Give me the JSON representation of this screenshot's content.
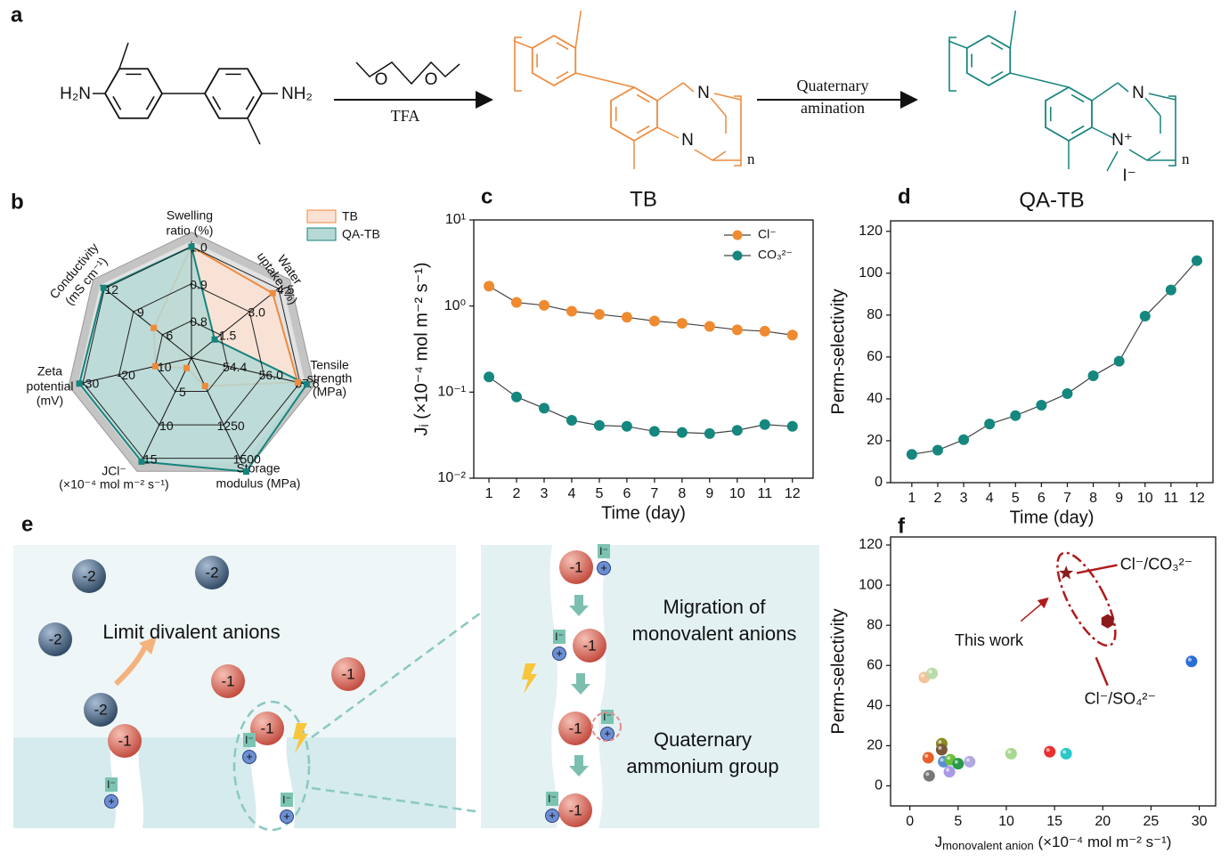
{
  "panels": [
    "a",
    "b",
    "c",
    "d",
    "e",
    "f"
  ],
  "scheme": {
    "amine_left": "H₂N",
    "amine_right": "NH₂",
    "oxygen": "O",
    "reagent": "TFA",
    "step2": [
      "Quaternary",
      "amination"
    ],
    "atom_n": "N",
    "atom_n_plus": "N⁺",
    "iodide": "I⁻",
    "repeat": "n"
  },
  "schematic": {
    "divalent": "-2",
    "monovalent": "-1",
    "counter_ion": "I⁻",
    "charge": "+",
    "limit_text": "Limit divalent anions",
    "migration_text": [
      "Migration of",
      "monovalent anions"
    ],
    "group_text": [
      "Quaternary",
      "ammonium group"
    ]
  },
  "chart_data": [
    {
      "type": "radar",
      "series": [
        {
          "name": "TB",
          "color": "#ee8a3c",
          "fill": "#fbe2d4",
          "values": [
            1.0,
            4.2,
            57.5,
            960,
            1.5,
            -10,
            6.9
          ]
        },
        {
          "name": "QA-TB",
          "color": "#16847d",
          "fill": "#b6d9d6",
          "values": [
            1.0,
            1.2,
            57.9,
            1600,
            15.5,
            -31,
            12.1
          ]
        }
      ],
      "axes": [
        {
          "label": [
            "Swelling",
            "ratio (%)"
          ],
          "lim": [
            0.7,
            1.0
          ],
          "ticks": [
            0.8,
            0.9,
            {
              "value": 1,
              "label": "1.0"
            }
          ]
        },
        {
          "label": [
            "Water",
            "uptake (%)"
          ],
          "lim": [
            0,
            4.5
          ],
          "ticks": [
            1.5,
            {
              "value": 3,
              "label": "3.0"
            },
            4.5
          ]
        },
        {
          "label": [
            "Tensile",
            "strength",
            "(MPa)"
          ],
          "lim": [
            52.8,
            57.6
          ],
          "ticks": [
            54.4,
            {
              "value": 56,
              "label": "56.0"
            },
            57.6
          ]
        },
        {
          "label": [
            "Storage",
            "modulus (MPa)"
          ],
          "lim": [
            750,
            1500
          ],
          "ticks": [
            1250,
            1500
          ]
        },
        {
          "label": [
            "JCl⁻",
            "(×10⁻⁴ mol m⁻² s⁻¹)"
          ],
          "lim": [
            0,
            15
          ],
          "ticks": [
            5,
            10,
            15
          ]
        },
        {
          "label": [
            "Zeta",
            "potential",
            "(mV)"
          ],
          "lim": [
            0,
            -30
          ],
          "ticks": [
            -10,
            -20,
            -30
          ]
        },
        {
          "label": [
            "Conductivity",
            "(mS cm⁻¹)"
          ],
          "lim": [
            3,
            12
          ],
          "ticks": [
            6,
            9,
            12
          ]
        }
      ]
    },
    {
      "type": "line",
      "title": "TB",
      "title_color": "#ee8a3c",
      "log_y": true,
      "xlabel": "Time (day)",
      "ylabel": "Jᵢ (×10⁻⁴ mol m⁻² s⁻¹)",
      "x": [
        1,
        2,
        3,
        4,
        5,
        6,
        7,
        8,
        9,
        10,
        11,
        12
      ],
      "xlim": [
        0.45,
        12.75
      ],
      "xticks": [
        1,
        2,
        3,
        4,
        5,
        6,
        7,
        8,
        9,
        10,
        11,
        12
      ],
      "ylim": [
        0.01,
        10
      ],
      "yticks": [
        {
          "value": 0.01,
          "label": "10⁻²"
        },
        {
          "value": 0.1,
          "label": "10⁻¹"
        },
        {
          "value": 1,
          "label": "10⁰"
        },
        {
          "value": 10,
          "label": "10¹"
        }
      ],
      "series": [
        {
          "name": "Cl⁻",
          "color": "#f08a2e",
          "values": [
            1.7,
            1.1,
            1.02,
            0.87,
            0.8,
            0.74,
            0.67,
            0.63,
            0.58,
            0.53,
            0.51,
            0.46
          ]
        },
        {
          "name": "CO₃²⁻",
          "color": "#14877f",
          "values": [
            0.15,
            0.088,
            0.065,
            0.047,
            0.041,
            0.04,
            0.035,
            0.034,
            0.033,
            0.036,
            0.042,
            0.04
          ]
        }
      ]
    },
    {
      "type": "line",
      "title": "QA-TB",
      "title_color": "#14877f",
      "xlabel": "Time (day)",
      "ylabel": "Perm-selectivity",
      "x": [
        1,
        2,
        3,
        4,
        5,
        6,
        7,
        8,
        9,
        10,
        11,
        12
      ],
      "xlim": [
        0.18,
        12.62
      ],
      "xticks": [
        1,
        2,
        3,
        4,
        5,
        6,
        7,
        8,
        9,
        10,
        11,
        12
      ],
      "ylim": [
        0,
        125
      ],
      "yticks": [
        0,
        20,
        40,
        60,
        80,
        100,
        120
      ],
      "series": [
        {
          "color": "#14877f",
          "values": [
            13.5,
            15.5,
            20.5,
            28,
            32,
            37,
            42.5,
            51,
            58,
            79.5,
            92,
            106
          ]
        }
      ]
    },
    {
      "type": "scatter",
      "ylabel": "Perm-selectivity",
      "xlabel": [
        "J",
        "monovalent anion",
        " (×10⁻⁴ mol m⁻² s⁻¹)"
      ],
      "xlim": [
        -2,
        31.7
      ],
      "xticks": [
        0,
        5,
        10,
        15,
        20,
        25,
        30
      ],
      "ylim": [
        -10,
        124
      ],
      "yticks": [
        0,
        20,
        40,
        60,
        80,
        100,
        120
      ],
      "annotations": [
        "Cl⁻/CO₃²⁻",
        "Cl⁻/SO₄²⁻",
        "This work"
      ],
      "points": [
        {
          "x": 16.2,
          "y": 106,
          "color": "#8b1a1a",
          "marker": "star"
        },
        {
          "x": 20.5,
          "y": 82,
          "color": "#8b1a1a",
          "marker": "hexagon"
        },
        {
          "x": 29.2,
          "y": 62,
          "color": "#2a6fd6",
          "marker": "sphere"
        },
        {
          "x": 1.5,
          "y": 54,
          "color": "#f3c49a",
          "marker": "sphere"
        },
        {
          "x": 2.3,
          "y": 56,
          "color": "#b9dca8",
          "marker": "sphere"
        },
        {
          "x": 3.3,
          "y": 21,
          "color": "#8a8a1e",
          "marker": "sphere"
        },
        {
          "x": 3.3,
          "y": 18,
          "color": "#7a5a3a",
          "marker": "sphere"
        },
        {
          "x": 1.9,
          "y": 14,
          "color": "#e8602a",
          "marker": "sphere"
        },
        {
          "x": 3.5,
          "y": 12,
          "color": "#5b8fd0",
          "marker": "sphere"
        },
        {
          "x": 4.2,
          "y": 13,
          "color": "#6cc03c",
          "marker": "sphere"
        },
        {
          "x": 5.0,
          "y": 11,
          "color": "#2a9a4a",
          "marker": "sphere"
        },
        {
          "x": 6.2,
          "y": 12,
          "color": "#b0a8e0",
          "marker": "sphere"
        },
        {
          "x": 4.1,
          "y": 7,
          "color": "#a89ae8",
          "marker": "sphere"
        },
        {
          "x": 2.0,
          "y": 5,
          "color": "#777777",
          "marker": "sphere"
        },
        {
          "x": 10.5,
          "y": 16,
          "color": "#a8d890",
          "marker": "sphere"
        },
        {
          "x": 14.5,
          "y": 17,
          "color": "#e83030",
          "marker": "sphere"
        },
        {
          "x": 16.2,
          "y": 16,
          "color": "#2ac8c8",
          "marker": "sphere"
        }
      ]
    }
  ]
}
